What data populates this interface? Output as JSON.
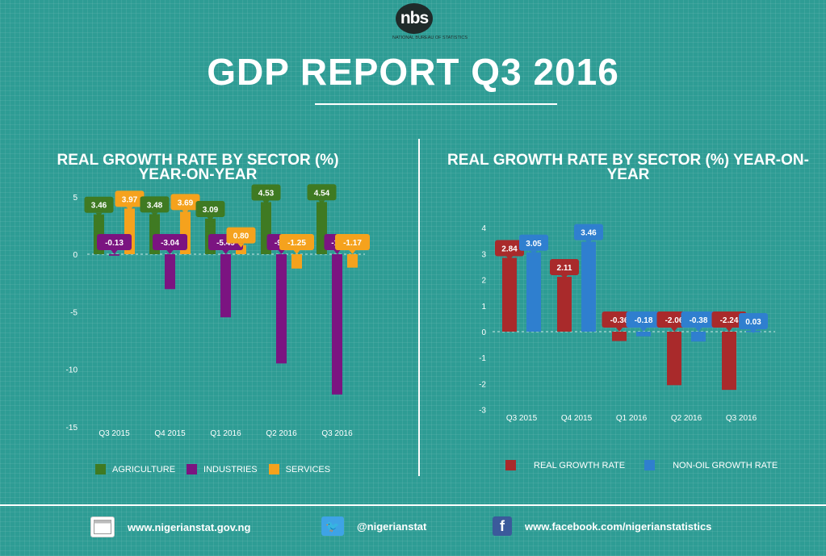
{
  "header": {
    "logo_text": "nbs",
    "logo_subtext": "NATIONAL BUREAU OF STATISTICS",
    "title": "GDP REPORT Q3 2016"
  },
  "colors": {
    "background": "#2e9c94",
    "agriculture": "#3f7a22",
    "industries": "#7b1481",
    "services": "#f5a21d",
    "real_growth": "#a92a2b",
    "non_oil_growth": "#2f7fcf"
  },
  "chart_data": [
    {
      "type": "bar",
      "title": "REAL GROWTH RATE BY SECTOR (%) YEAR-ON-YEAR",
      "categories": [
        "Q3 2015",
        "Q4 2015",
        "Q1 2016",
        "Q2 2016",
        "Q3 2016"
      ],
      "series": [
        {
          "name": "AGRICULTURE",
          "values": [
            3.46,
            3.48,
            3.09,
            4.53,
            4.54
          ]
        },
        {
          "name": "INDUSTRIES",
          "values": [
            -0.13,
            -3.04,
            -5.49,
            -9.5,
            -12.2
          ]
        },
        {
          "name": "SERVICES",
          "values": [
            3.97,
            3.69,
            0.8,
            -1.25,
            -1.17
          ]
        }
      ],
      "series_labels": [
        [
          "3.46",
          "3.48",
          "3.09",
          "4.53",
          "4.54"
        ],
        [
          "-0.13",
          "-3.04",
          "-5.49",
          "-9.5",
          "-12"
        ],
        [
          "3.97",
          "3.69",
          "0.80",
          "-1.25",
          "-1.17"
        ]
      ],
      "yticks": [
        "5",
        "0",
        "-5",
        "-10",
        "-15"
      ],
      "ylim": [
        -15,
        5
      ],
      "legend_position": "bottom"
    },
    {
      "type": "bar",
      "title": "REAL GROWTH RATE BY SECTOR (%) YEAR-ON-YEAR",
      "categories": [
        "Q3 2015",
        "Q4 2015",
        "Q1 2016",
        "Q2 2016",
        "Q3 2016"
      ],
      "series": [
        {
          "name": "REAL GROWTH RATE",
          "values": [
            2.84,
            2.11,
            -0.36,
            -2.06,
            -2.24
          ]
        },
        {
          "name": "NON-OIL GROWTH RATE",
          "values": [
            3.05,
            3.46,
            -0.18,
            -0.38,
            0.03
          ]
        }
      ],
      "series_labels": [
        [
          "2.84",
          "2.11",
          "-0.36",
          "-2.06",
          "-2.24"
        ],
        [
          "3.05",
          "3.46",
          "-0.18",
          "-0.38",
          "0.03"
        ]
      ],
      "yticks": [
        "4",
        "3",
        "2",
        "1",
        "0",
        "-1",
        "-2",
        "-3"
      ],
      "ylim": [
        -3,
        4
      ],
      "legend_position": "bottom"
    }
  ],
  "footer": {
    "website": "www.nigerianstat.gov.ng",
    "twitter": "@nigerianstat",
    "facebook": "www.facebook.com/nigerianstatistics",
    "website_icon": "browser-window-icon",
    "twitter_icon": "twitter-bird-icon",
    "facebook_icon": "facebook-f-icon",
    "twitter_glyph": "🐦",
    "facebook_glyph": "f"
  }
}
